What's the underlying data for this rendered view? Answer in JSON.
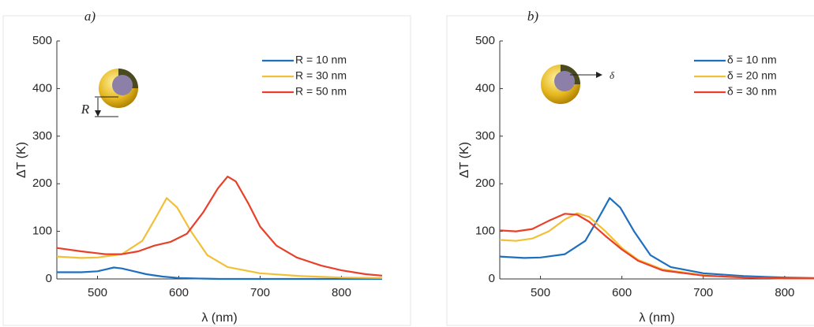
{
  "chart_data": [
    {
      "type": "line",
      "title": "a)",
      "xlabel": "λ (nm)",
      "ylabel": "ΔT (K)",
      "xlim": [
        450,
        850
      ],
      "ylim": [
        0,
        500
      ],
      "xticks": [
        500,
        600,
        700,
        800
      ],
      "yticks": [
        0,
        100,
        200,
        300,
        400,
        500
      ],
      "legend": "upper right",
      "annotation": "R",
      "series": [
        {
          "name": "R = 10 nm",
          "color": "#1f6fbf",
          "x": [
            450,
            480,
            500,
            510,
            520,
            530,
            545,
            560,
            580,
            600,
            620,
            650,
            700,
            800,
            850
          ],
          "values": [
            14,
            14,
            16,
            20,
            24,
            22,
            16,
            10,
            5,
            2,
            1,
            0,
            0,
            0,
            0
          ]
        },
        {
          "name": "R = 30 nm",
          "color": "#f2c037",
          "x": [
            450,
            480,
            500,
            530,
            555,
            572,
            585,
            598,
            615,
            635,
            660,
            700,
            750,
            800,
            850
          ],
          "values": [
            47,
            44,
            45,
            52,
            80,
            130,
            170,
            150,
            100,
            50,
            25,
            12,
            6,
            3,
            2
          ]
        },
        {
          "name": "R = 50 nm",
          "color": "#e8402a",
          "x": [
            450,
            480,
            510,
            530,
            550,
            570,
            590,
            610,
            630,
            648,
            660,
            670,
            685,
            700,
            720,
            745,
            775,
            800,
            830,
            850
          ],
          "values": [
            65,
            58,
            52,
            52,
            58,
            70,
            78,
            95,
            140,
            190,
            215,
            205,
            160,
            110,
            70,
            45,
            28,
            18,
            10,
            7
          ]
        }
      ]
    },
    {
      "type": "line",
      "title": "b)",
      "xlabel": "λ (nm)",
      "ylabel": "ΔT (K)",
      "xlim": [
        450,
        836
      ],
      "ylim": [
        0,
        500
      ],
      "xticks": [
        500,
        600,
        700,
        800
      ],
      "yticks": [
        0,
        100,
        200,
        300,
        400,
        500
      ],
      "legend": "upper right",
      "annotation": "δ",
      "series": [
        {
          "name": "δ = 10 nm",
          "color": "#1f6fbf",
          "x": [
            450,
            480,
            500,
            530,
            555,
            572,
            585,
            598,
            615,
            635,
            660,
            700,
            750,
            800,
            836
          ],
          "values": [
            47,
            44,
            45,
            52,
            80,
            130,
            170,
            150,
            100,
            50,
            25,
            12,
            6,
            3,
            2
          ]
        },
        {
          "name": "δ = 20 nm",
          "color": "#f2c037",
          "x": [
            450,
            470,
            490,
            510,
            530,
            545,
            560,
            580,
            600,
            620,
            650,
            700,
            750,
            800,
            836
          ],
          "values": [
            82,
            80,
            85,
            100,
            125,
            138,
            130,
            100,
            65,
            40,
            20,
            8,
            3,
            1,
            1
          ]
        },
        {
          "name": "δ = 30 nm",
          "color": "#e8402a",
          "x": [
            450,
            470,
            490,
            510,
            530,
            545,
            560,
            580,
            600,
            620,
            650,
            700,
            750,
            800,
            836
          ],
          "values": [
            102,
            100,
            105,
            122,
            137,
            135,
            120,
            90,
            62,
            38,
            18,
            7,
            3,
            1,
            1
          ]
        }
      ]
    }
  ]
}
